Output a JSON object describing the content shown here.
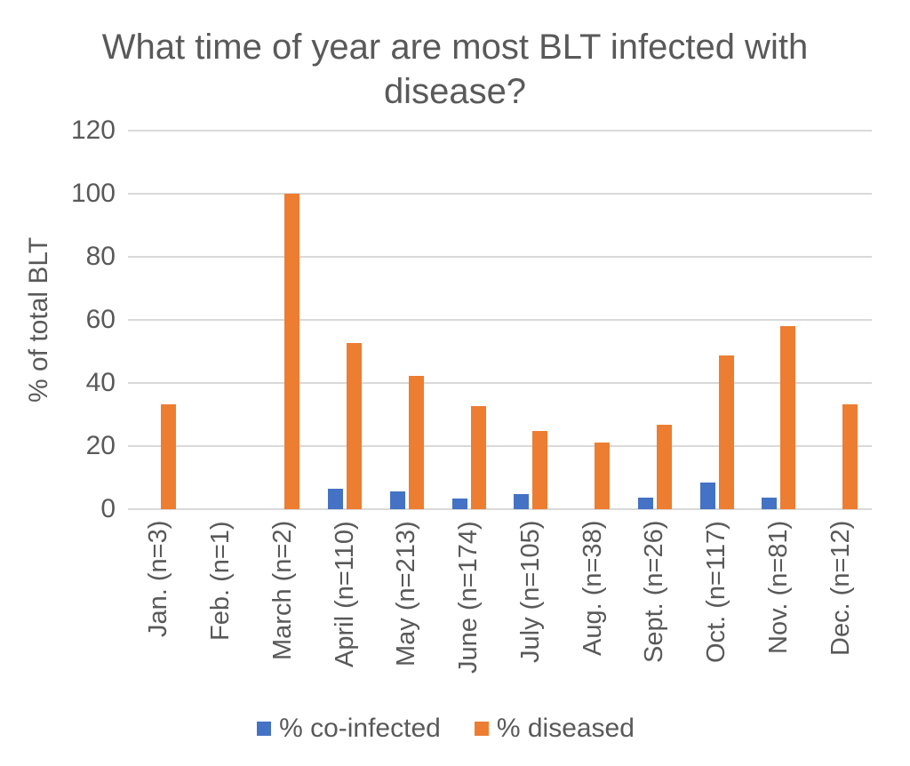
{
  "chart_data": {
    "type": "bar",
    "title": "What time of year are most BLT infected with disease?",
    "ylabel": "% of total BLT",
    "ylim": [
      0,
      120
    ],
    "ytick_step": 20,
    "grid": true,
    "legend_position": "bottom",
    "categories": [
      "Jan. (n=3)",
      "Feb. (n=1)",
      "March (n=2)",
      "April (n=110)",
      "May (n=213)",
      "June (n=174)",
      "July (n=105)",
      "Aug. (n=38)",
      "Sept. (n=26)",
      "Oct. (n=117)",
      "Nov. (n=81)",
      "Dec. (n=12)"
    ],
    "series": [
      {
        "name": "% co-infected",
        "color": "#4472C4",
        "values": [
          0,
          0,
          0,
          6.4,
          5.6,
          3.4,
          4.8,
          0,
          3.8,
          8.5,
          3.7,
          0
        ]
      },
      {
        "name": "% diseased",
        "color": "#ED7D31",
        "values": [
          33.3,
          0,
          100,
          52.7,
          42.3,
          32.8,
          24.8,
          21.1,
          26.9,
          48.7,
          58,
          33.3
        ]
      }
    ],
    "text_color": "#595959",
    "gridline_color": "#D9D9D9"
  }
}
